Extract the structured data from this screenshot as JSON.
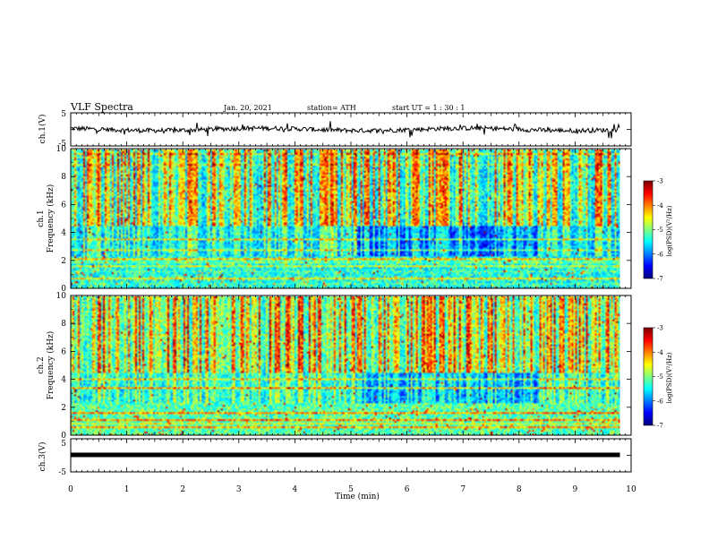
{
  "chart_data": [
    {
      "type": "line",
      "panel": "ch1-waveform",
      "ylabel": "ch.1(V)",
      "ylim": [
        -5,
        5
      ],
      "yticks": [
        "5",
        "-5"
      ],
      "xlim": [
        0,
        10
      ],
      "baseline": 0,
      "color": "#000000"
    },
    {
      "type": "heatmap",
      "panel": "ch1-spectrogram",
      "ylabel_line1": "ch.1",
      "ylabel_line2": "Frequency (kHz)",
      "ylim": [
        0,
        10
      ],
      "yticks": [
        "0",
        "2",
        "4",
        "6",
        "8",
        "10"
      ],
      "xlim": [
        0,
        10
      ],
      "data_extent_min": 9.8,
      "colorbar": {
        "label": "log(PSD)(V²/Hz)",
        "ticks": [
          "-3",
          "-4",
          "-5",
          "-6",
          "-7"
        ],
        "range": [
          -7,
          -3
        ]
      }
    },
    {
      "type": "heatmap",
      "panel": "ch2-spectrogram",
      "ylabel_line1": "ch.2",
      "ylabel_line2": "Frequency (kHz)",
      "ylim": [
        0,
        10
      ],
      "yticks": [
        "0",
        "2",
        "4",
        "6",
        "8",
        "10"
      ],
      "xlim": [
        0,
        10
      ],
      "data_extent_min": 9.8,
      "colorbar": {
        "label": "log(PSD)(V²/Hz)",
        "ticks": [
          "-3",
          "-4",
          "-5",
          "-6",
          "-7"
        ],
        "range": [
          -7,
          -3
        ]
      }
    },
    {
      "type": "line",
      "panel": "ch3-waveform",
      "ylabel": "ch.3(V)",
      "ylim": [
        -5,
        5
      ],
      "yticks": [
        "5",
        "-5"
      ],
      "xlim": [
        0,
        10
      ],
      "baseline": 0,
      "color": "#000000"
    }
  ],
  "header": {
    "title": "VLF Spectra",
    "date": "Jan. 20, 2021",
    "station": "station= ATH",
    "start": "start UT = 1 : 30 : 1"
  },
  "xaxis": {
    "label": "Time (min)",
    "ticks": [
      "0",
      "1",
      "2",
      "3",
      "4",
      "5",
      "6",
      "7",
      "8",
      "9",
      "10"
    ]
  }
}
